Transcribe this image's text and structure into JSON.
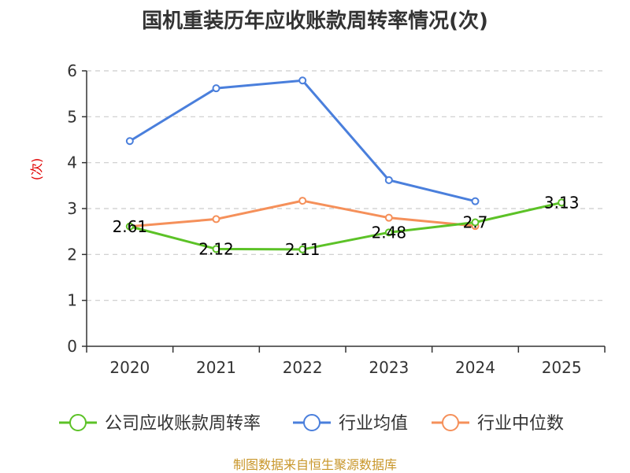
{
  "chart_data": {
    "type": "line",
    "title": "国机重装历年应收账款周转率情况(次)",
    "ylabel": "(次)",
    "xlabel": "",
    "categories": [
      "2020",
      "2021",
      "2022",
      "2023",
      "2024",
      "2025"
    ],
    "ylim": [
      0,
      6
    ],
    "yticks": [
      0,
      1,
      2,
      3,
      4,
      5,
      6
    ],
    "grid": true,
    "legend_position": "bottom",
    "series": [
      {
        "name": "公司应收账款周转率",
        "color": "#5cc227",
        "values": [
          2.61,
          2.12,
          2.11,
          2.48,
          2.7,
          3.13
        ],
        "labels": [
          "2.61",
          "2.12",
          "2.11",
          "2.48",
          "2.7",
          "3.13"
        ]
      },
      {
        "name": "行业均值",
        "color": "#4a7fdc",
        "values": [
          4.47,
          5.62,
          5.79,
          3.62,
          3.16,
          null
        ]
      },
      {
        "name": "行业中位数",
        "color": "#f5905a",
        "values": [
          2.61,
          2.77,
          3.17,
          2.8,
          2.62,
          null
        ]
      }
    ]
  },
  "source": "制图数据来自恒生聚源数据库",
  "colors": {
    "source_text": "#c8962a",
    "grid": "#cccccc",
    "axis": "#333333",
    "ylabel": "#e00000"
  }
}
